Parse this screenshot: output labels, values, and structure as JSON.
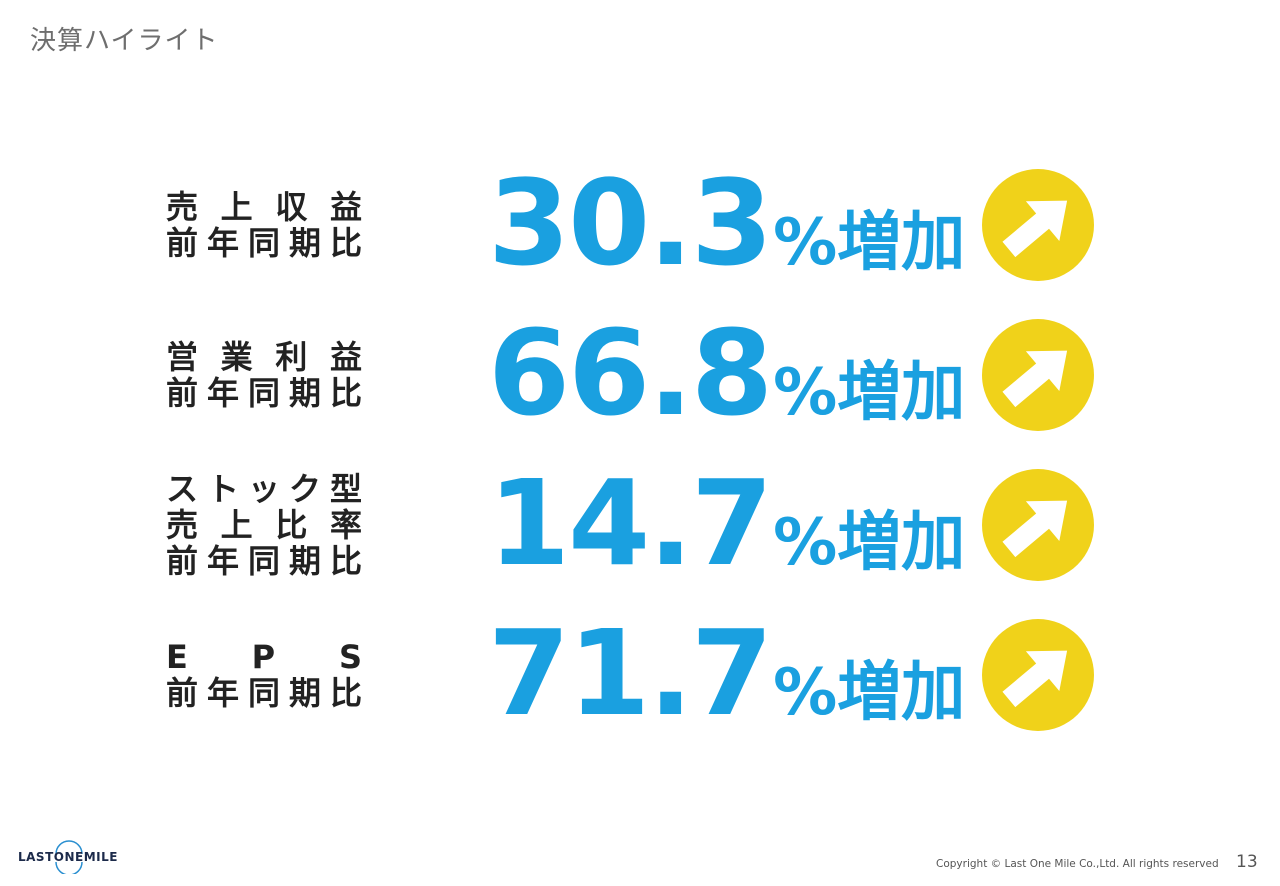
{
  "title": "決算ハイライト",
  "metrics": [
    {
      "label_lines": [
        "売上収益",
        "前年同期比"
      ],
      "value": "30.3",
      "suffix": "%増加"
    },
    {
      "label_lines": [
        "営業利益",
        "前年同期比"
      ],
      "value": "66.8",
      "suffix": "%増加"
    },
    {
      "label_lines": [
        "ストック型",
        "売上比率",
        "前年同期比"
      ],
      "value": "14.7",
      "suffix": "%増加"
    },
    {
      "label_lines": [
        "EPS",
        "前年同期比"
      ],
      "value": "71.7",
      "suffix": "%増加"
    }
  ],
  "footer": {
    "logo_text": "LASTONEMILE",
    "copyright": "Copyright © Last One Mile Co.,Ltd. All rights reserved",
    "page_number": "13"
  },
  "colors": {
    "value_blue": "#1aa0e0",
    "badge_yellow": "#f0d21a",
    "label_dark": "#222222",
    "title_gray": "#6e6e6e"
  },
  "icons": {
    "badge": "arrow-up-right-icon"
  }
}
